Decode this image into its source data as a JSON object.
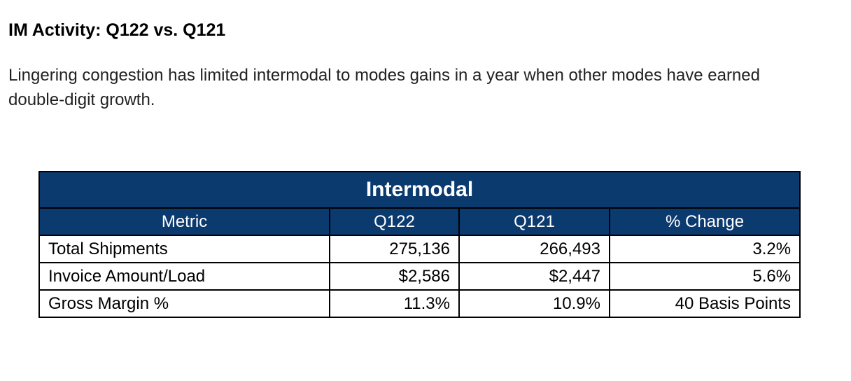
{
  "page": {
    "heading": "IM Activity: Q122 vs. Q121",
    "subtitle": "Lingering congestion has limited intermodal to modes gains in a year when other modes have earned double-digit growth."
  },
  "table": {
    "title": "Intermodal",
    "columns": [
      "Metric",
      "Q122",
      "Q121",
      "% Change"
    ],
    "rows": [
      {
        "metric": "Total Shipments",
        "q122": "275,136",
        "q121": "266,493",
        "change": "3.2%"
      },
      {
        "metric": "Invoice Amount/Load",
        "q122": "$2,586",
        "q121": "$2,447",
        "change": "5.6%"
      },
      {
        "metric": "Gross Margin %",
        "q122": "11.3%",
        "q121": "10.9%",
        "change": "40 Basis Points"
      }
    ]
  },
  "colors": {
    "header_background": "#0b3a6f",
    "header_text": "#ffffff"
  }
}
